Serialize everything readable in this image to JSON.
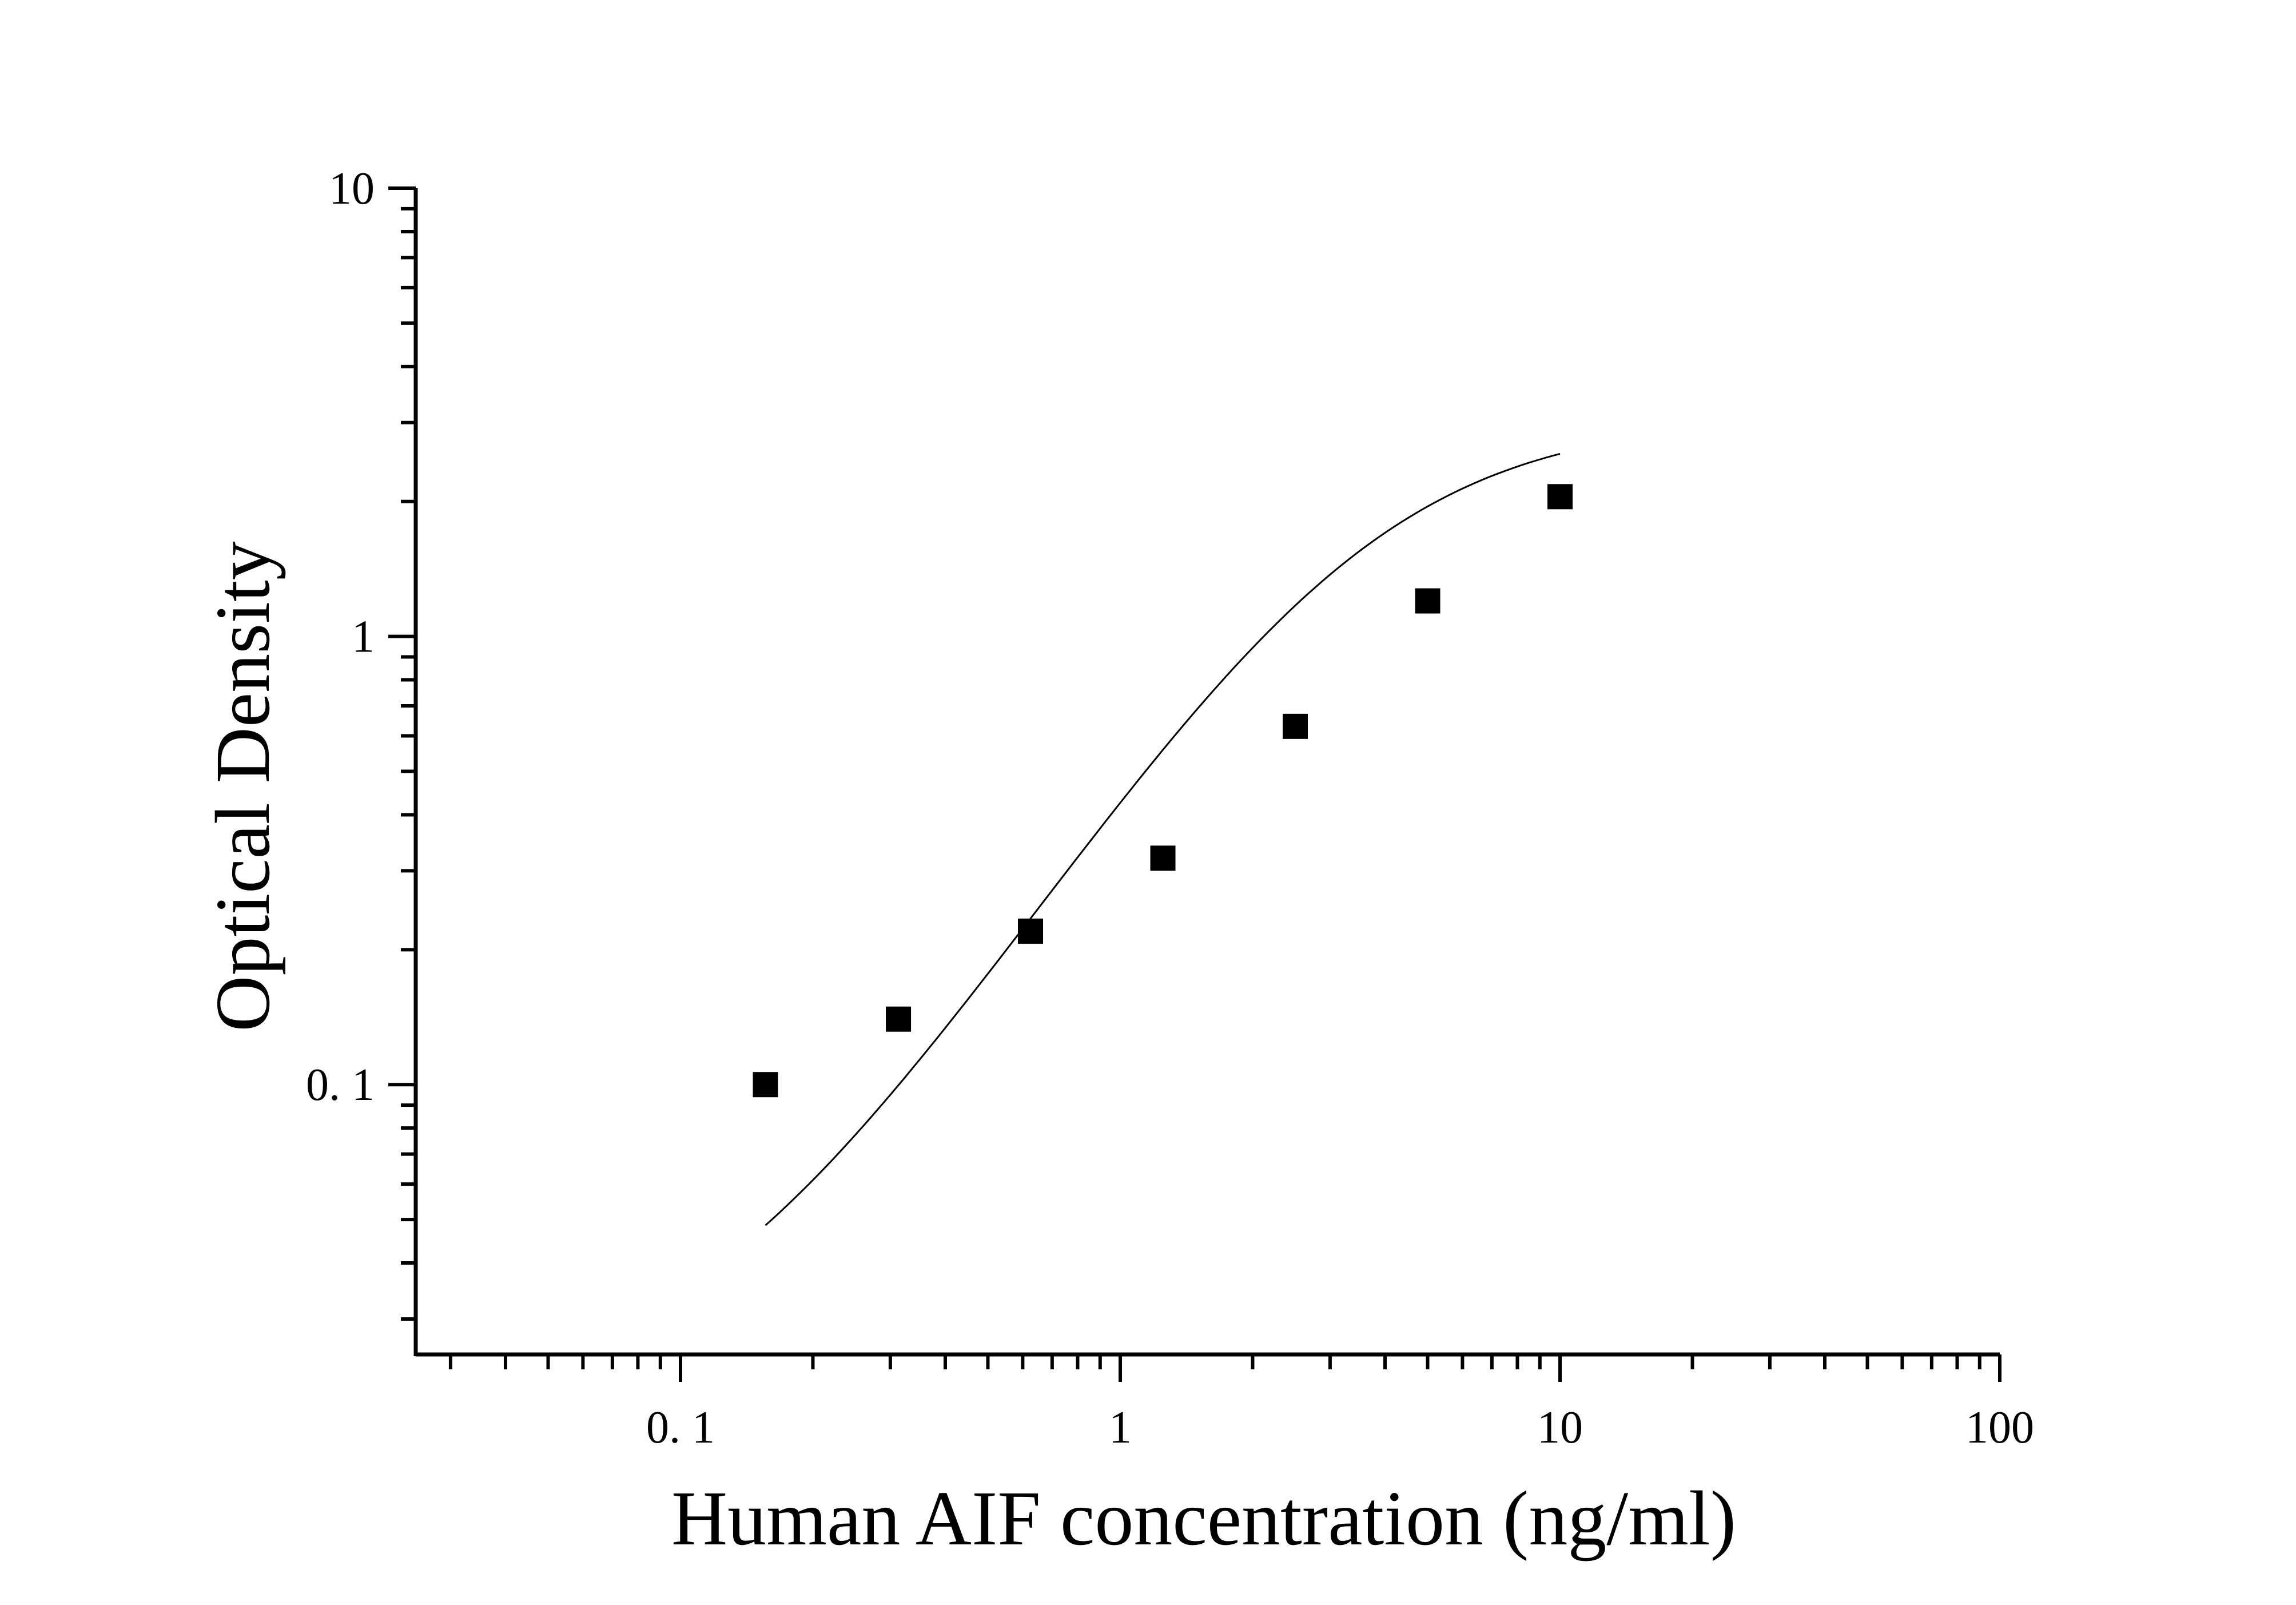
{
  "chart_data": {
    "type": "scatter",
    "title": "",
    "xlabel": "Human AIF concentration (ng/ml)",
    "ylabel": "Optical Density",
    "x_scale": "log",
    "y_scale": "log",
    "xlim": [
      0.025,
      100
    ],
    "ylim": [
      0.025,
      10
    ],
    "x_ticks": [
      {
        "value": 0.1,
        "label": "0. 1"
      },
      {
        "value": 1,
        "label": "1"
      },
      {
        "value": 10,
        "label": "10"
      },
      {
        "value": 100,
        "label": "100"
      }
    ],
    "y_ticks": [
      {
        "value": 0.1,
        "label": "0. 1"
      },
      {
        "value": 1,
        "label": "1"
      },
      {
        "value": 10,
        "label": "10"
      }
    ],
    "grid": false,
    "legend": "none",
    "series": [
      {
        "marker": "square",
        "color": "#000000",
        "points": [
          {
            "x": 0.156,
            "y": 0.1
          },
          {
            "x": 0.313,
            "y": 0.14
          },
          {
            "x": 0.625,
            "y": 0.22
          },
          {
            "x": 1.25,
            "y": 0.32
          },
          {
            "x": 2.5,
            "y": 0.63
          },
          {
            "x": 5,
            "y": 1.2
          },
          {
            "x": 10,
            "y": 2.05
          }
        ]
      }
    ],
    "fit_curve": {
      "type": "4PL",
      "color": "#000000",
      "x_range": [
        0.156,
        10
      ],
      "params": {
        "a": 0.02,
        "b": 1.5,
        "c": 3.5,
        "d": 3.08
      }
    }
  }
}
